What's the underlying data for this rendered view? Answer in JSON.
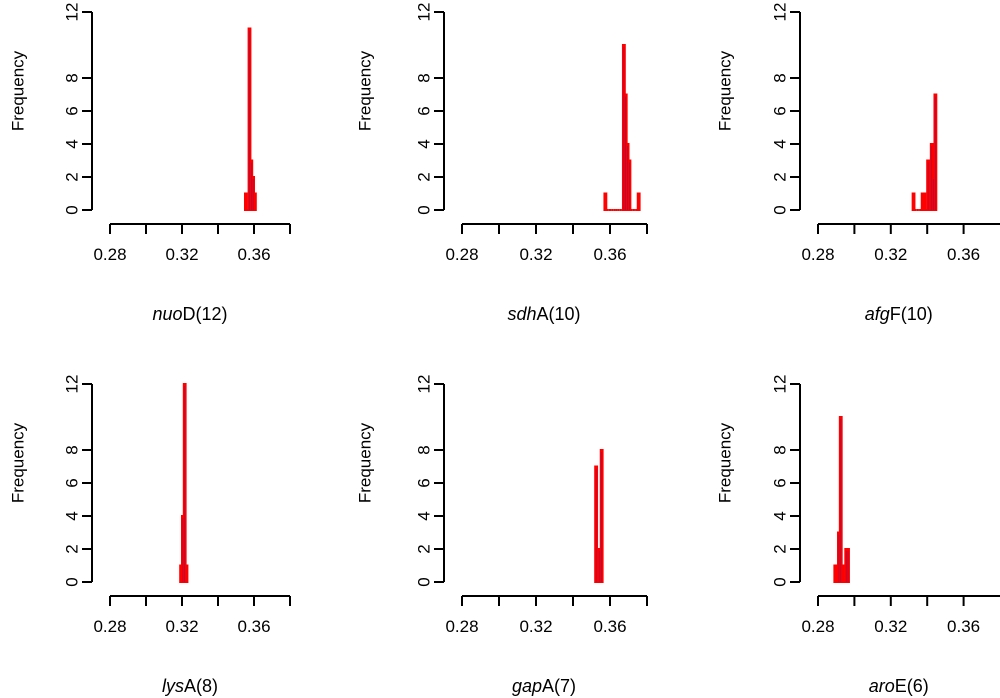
{
  "colors": {
    "bar": "#ff0000",
    "edge": "#2222aa",
    "axis": "#000000"
  },
  "chart_data": [
    {
      "type": "bar",
      "gene": "nuo",
      "suffix": "D(12)",
      "xlabel": "nuoD(12)",
      "ylabel": "Frequency",
      "xlim": [
        0.28,
        0.38
      ],
      "ylim": [
        0,
        12
      ],
      "xticks": [
        "0.28",
        "0.32",
        "0.36"
      ],
      "yticks": [
        "0",
        "2",
        "4",
        "6",
        "8",
        "12"
      ],
      "bin_width": 0.001,
      "bins": [
        [
          0.355,
          1
        ],
        [
          0.356,
          0
        ],
        [
          0.357,
          11
        ],
        [
          0.358,
          3
        ],
        [
          0.359,
          2
        ],
        [
          0.36,
          1
        ]
      ]
    },
    {
      "type": "bar",
      "gene": "sdh",
      "suffix": "A(10)",
      "xlabel": "sdhA(10)",
      "ylabel": "Frequency",
      "xlim": [
        0.28,
        0.38
      ],
      "ylim": [
        0,
        12
      ],
      "xticks": [
        "0.28",
        "0.32",
        "0.36"
      ],
      "yticks": [
        "0",
        "2",
        "4",
        "6",
        "8",
        "12"
      ],
      "bin_width": 0.001,
      "bins": [
        [
          0.357,
          1
        ],
        [
          0.358,
          0
        ],
        [
          0.359,
          0
        ],
        [
          0.36,
          0
        ],
        [
          0.361,
          0
        ],
        [
          0.362,
          0
        ],
        [
          0.363,
          0
        ],
        [
          0.364,
          0
        ],
        [
          0.365,
          0
        ],
        [
          0.366,
          0
        ],
        [
          0.367,
          10
        ],
        [
          0.368,
          7
        ],
        [
          0.369,
          4
        ],
        [
          0.37,
          3
        ],
        [
          0.371,
          0
        ],
        [
          0.372,
          0
        ],
        [
          0.373,
          0
        ],
        [
          0.374,
          0
        ],
        [
          0.375,
          1
        ]
      ]
    },
    {
      "type": "bar",
      "gene": "afg",
      "suffix": "F(10)",
      "xlabel": "afgF(10)",
      "ylabel": "Frequency",
      "xlim": [
        0.28,
        0.38
      ],
      "ylim": [
        0,
        12
      ],
      "xticks": [
        "0.28",
        "0.32",
        "0.36"
      ],
      "yticks": [
        "0",
        "2",
        "4",
        "6",
        "8",
        "12"
      ],
      "bin_width": 0.001,
      "bins": [
        [
          0.332,
          1
        ],
        [
          0.333,
          0
        ],
        [
          0.334,
          0
        ],
        [
          0.335,
          0
        ],
        [
          0.336,
          0
        ],
        [
          0.337,
          1
        ],
        [
          0.338,
          1
        ],
        [
          0.339,
          0
        ],
        [
          0.34,
          3
        ],
        [
          0.341,
          0
        ],
        [
          0.342,
          4
        ],
        [
          0.343,
          2
        ],
        [
          0.344,
          7
        ]
      ]
    },
    {
      "type": "bar",
      "gene": "lys",
      "suffix": "A(8)",
      "xlabel": "lysA(8)",
      "ylabel": "Frequency",
      "xlim": [
        0.28,
        0.38
      ],
      "ylim": [
        0,
        12
      ],
      "xticks": [
        "0.28",
        "0.32",
        "0.36"
      ],
      "yticks": [
        "0",
        "2",
        "4",
        "6",
        "8",
        "12"
      ],
      "bin_width": 0.001,
      "bins": [
        [
          0.319,
          1
        ],
        [
          0.32,
          4
        ],
        [
          0.321,
          12
        ],
        [
          0.322,
          1
        ]
      ]
    },
    {
      "type": "bar",
      "gene": "gap",
      "suffix": "A(7)",
      "xlabel": "gapA(7)",
      "ylabel": "Frequency",
      "xlim": [
        0.28,
        0.38
      ],
      "ylim": [
        0,
        12
      ],
      "xticks": [
        "0.28",
        "0.32",
        "0.36"
      ],
      "yticks": [
        "0",
        "2",
        "4",
        "6",
        "8",
        "12"
      ],
      "bin_width": 0.001,
      "bins": [
        [
          0.352,
          7
        ],
        [
          0.353,
          1
        ],
        [
          0.354,
          2
        ],
        [
          0.355,
          8
        ]
      ]
    },
    {
      "type": "bar",
      "gene": "aro",
      "suffix": "E(6)",
      "xlabel": "aroE(6)",
      "ylabel": "Frequency",
      "xlim": [
        0.28,
        0.38
      ],
      "ylim": [
        0,
        12
      ],
      "xticks": [
        "0.28",
        "0.32",
        "0.36"
      ],
      "yticks": [
        "0",
        "2",
        "4",
        "6",
        "8",
        "12"
      ],
      "bin_width": 0.001,
      "bins": [
        [
          0.289,
          1
        ],
        [
          0.29,
          1
        ],
        [
          0.291,
          3
        ],
        [
          0.292,
          10
        ],
        [
          0.293,
          1
        ],
        [
          0.294,
          0
        ],
        [
          0.295,
          2
        ],
        [
          0.296,
          2
        ]
      ]
    }
  ]
}
